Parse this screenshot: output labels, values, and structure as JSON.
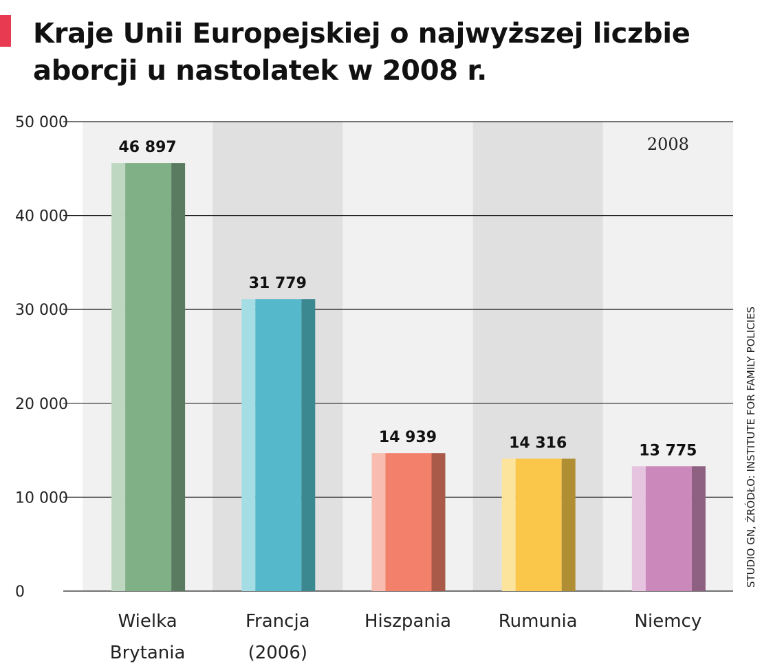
{
  "title": "Kraje Unii Europejskiej o najwyższej liczbie aborcji u nastolatek w 2008 r.",
  "source": "STUDIO GN, ŹRÓDŁO: INSTITUTE FOR FAMILY POLICIES",
  "colors": {
    "accent": "#e83a50",
    "band_light": "#f1f1f1",
    "band_dark": "#e0e0e0"
  },
  "chart_data": {
    "type": "bar",
    "categories": [
      [
        "Wielka",
        "Brytania"
      ],
      [
        "Francja",
        "(2006)"
      ],
      [
        "Hiszpania"
      ],
      [
        "Rumunia"
      ],
      [
        "Niemcy"
      ]
    ],
    "values": [
      46897,
      31779,
      14939,
      14316,
      13775
    ],
    "bar_heights_read_from_axis": [
      45600,
      31100,
      14700,
      14100,
      13300
    ],
    "value_labels": [
      "46 897",
      "31 779",
      "14 939",
      "14 316",
      "13 775"
    ],
    "annotation": "2008",
    "ylim": [
      0,
      50000
    ],
    "yticks": [
      0,
      10000,
      20000,
      30000,
      40000,
      50000
    ],
    "ytick_labels": [
      "0",
      "10 000",
      "20 000",
      "30 000",
      "40 000",
      "50 000"
    ],
    "grid": true,
    "bar_colors": [
      {
        "light": "#bdd7c0",
        "main": "#80b085",
        "dark": "#5a7b60"
      },
      {
        "light": "#a5dde5",
        "main": "#56b8cb",
        "dark": "#3c8891"
      },
      {
        "light": "#f8bdb0",
        "main": "#f2806a",
        "dark": "#a95a49"
      },
      {
        "light": "#fde49c",
        "main": "#fac74a",
        "dark": "#b08e33"
      },
      {
        "light": "#e6c3df",
        "main": "#cb88ba",
        "dark": "#8e6082"
      }
    ]
  }
}
